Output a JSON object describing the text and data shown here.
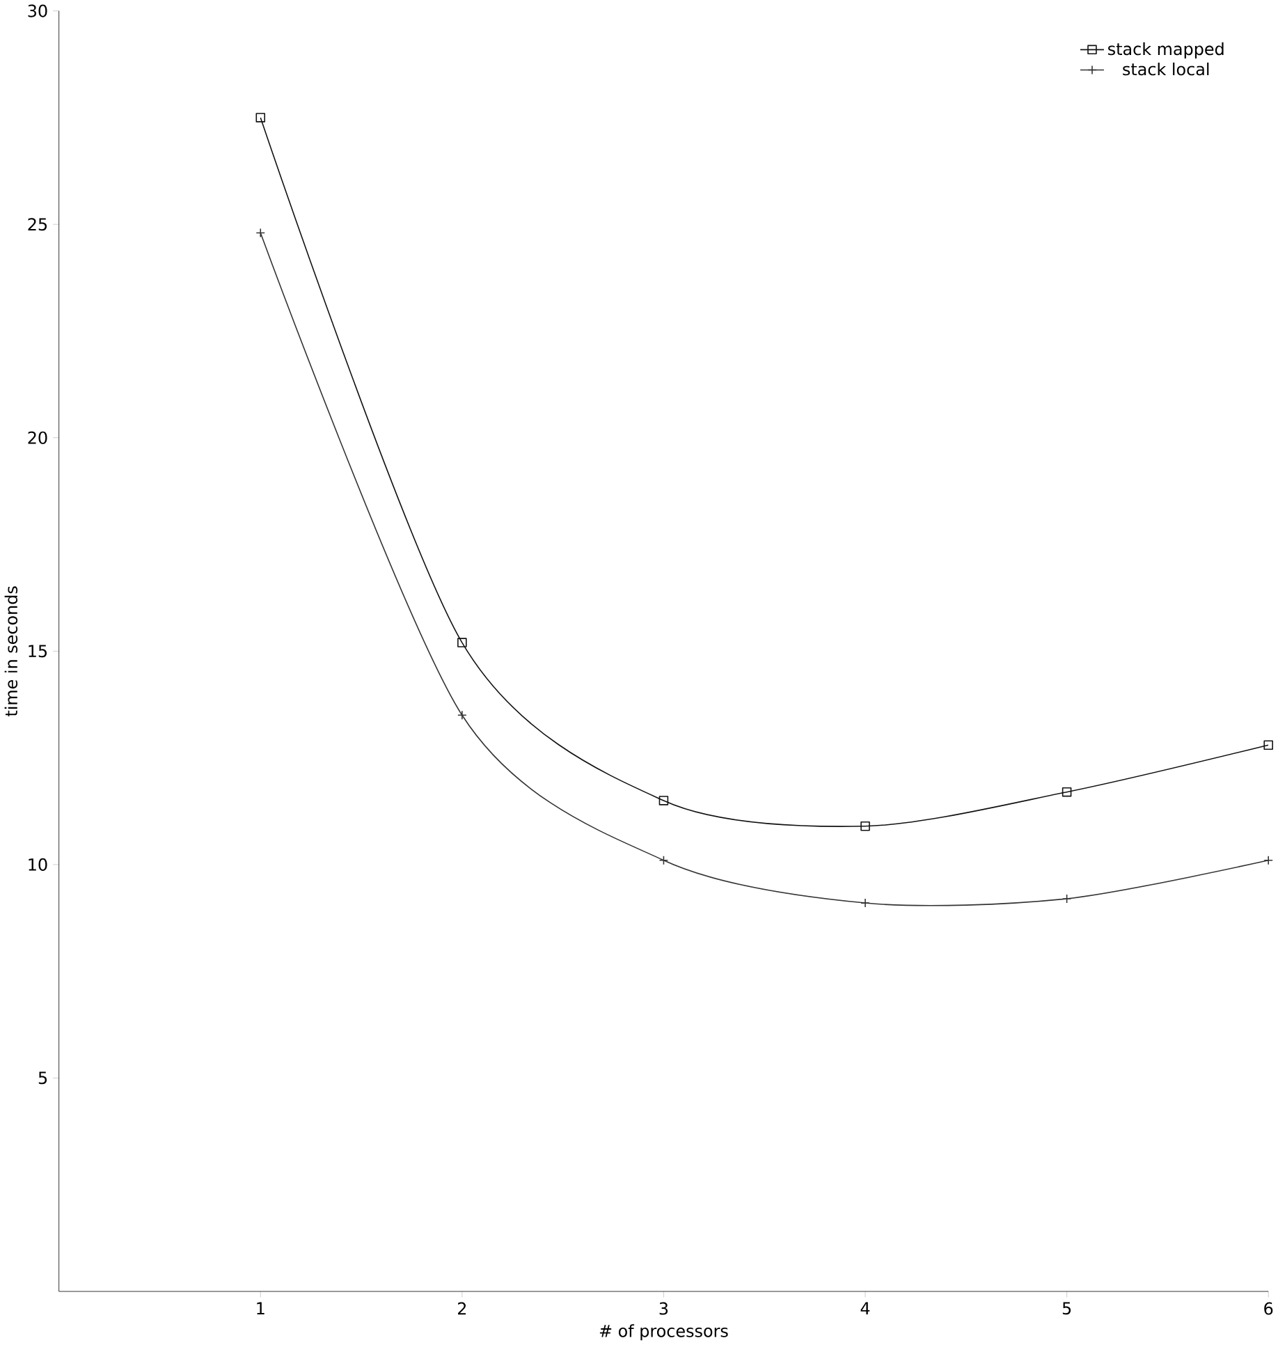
{
  "chart_data": {
    "type": "line",
    "xlabel": "# of processors",
    "ylabel": "time in seconds",
    "x": [
      1,
      2,
      3,
      4,
      5,
      6
    ],
    "series": [
      {
        "name": "stack mapped",
        "color": "#111111",
        "marker": "square",
        "values": [
          27.5,
          15.2,
          11.5,
          10.9,
          11.7,
          12.8
        ]
      },
      {
        "name": "stack local",
        "color": "#333333",
        "marker": "cross",
        "values": [
          24.8,
          13.5,
          10.1,
          9.1,
          9.2,
          10.1
        ]
      }
    ],
    "xlim": [
      0,
      6
    ],
    "ylim": [
      0,
      30
    ],
    "xticks": [
      1,
      2,
      3,
      4,
      5,
      6
    ],
    "yticks": [
      5,
      10,
      15,
      20,
      25,
      30
    ],
    "grid": false,
    "legend": "top right"
  }
}
